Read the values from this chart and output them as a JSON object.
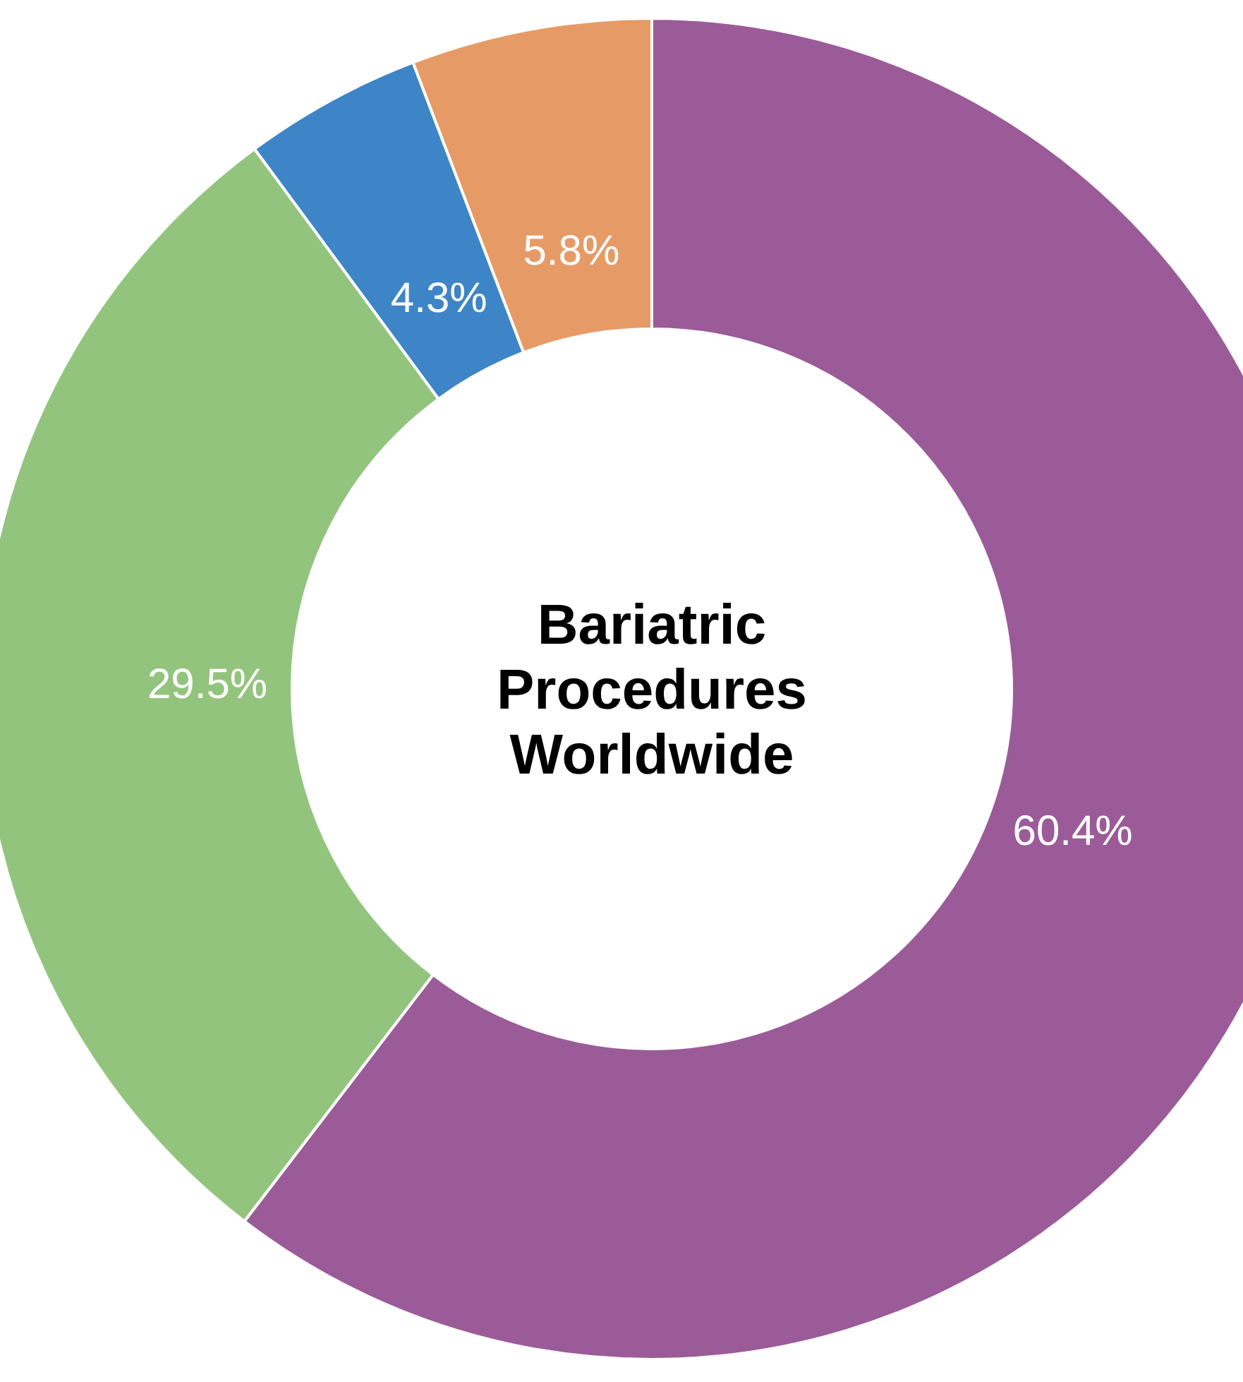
{
  "chart_data": {
    "type": "donut",
    "title": "Bariatric Procedures Worldwide",
    "categories": [
      null,
      null,
      null,
      null
    ],
    "values": [
      60.4,
      29.5,
      4.3,
      5.8
    ],
    "colors": [
      "#9b5b98",
      "#93c47d",
      "#3d85c6",
      "#e69b67"
    ],
    "value_labels": [
      "60.4%",
      "29.5%",
      "4.3%",
      "5.8%"
    ]
  }
}
